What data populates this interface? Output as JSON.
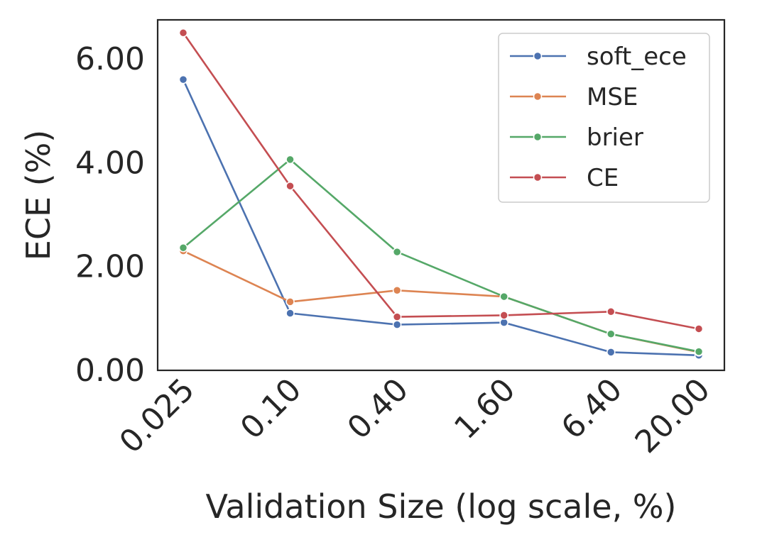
{
  "chart_data": {
    "type": "line",
    "title": "",
    "xlabel": "Validation Size (log scale, %)",
    "ylabel": "ECE (%)",
    "x_scale": "log",
    "categories": [
      "0.025",
      "0.10",
      "0.40",
      "1.60",
      "6.40",
      "20.00"
    ],
    "x": [
      0.025,
      0.1,
      0.4,
      1.6,
      6.4,
      20.0
    ],
    "yticks": [
      "0.00",
      "2.00",
      "4.00",
      "6.00"
    ],
    "ylim": [
      0,
      6.75
    ],
    "grid": false,
    "legend_position": "top-right",
    "series": [
      {
        "name": "soft_ece",
        "color": "#4c72b0",
        "values": [
          5.6,
          1.1,
          0.88,
          0.92,
          0.35,
          0.29
        ]
      },
      {
        "name": "MSE",
        "color": "#dd8452",
        "values": [
          2.3,
          1.32,
          1.54,
          1.42,
          0.7,
          0.35
        ]
      },
      {
        "name": "brier",
        "color": "#55a868",
        "values": [
          2.36,
          4.06,
          2.28,
          1.42,
          0.7,
          0.36
        ]
      },
      {
        "name": "CE",
        "color": "#c44e52",
        "values": [
          6.5,
          3.55,
          1.03,
          1.06,
          1.13,
          0.8
        ]
      }
    ]
  }
}
